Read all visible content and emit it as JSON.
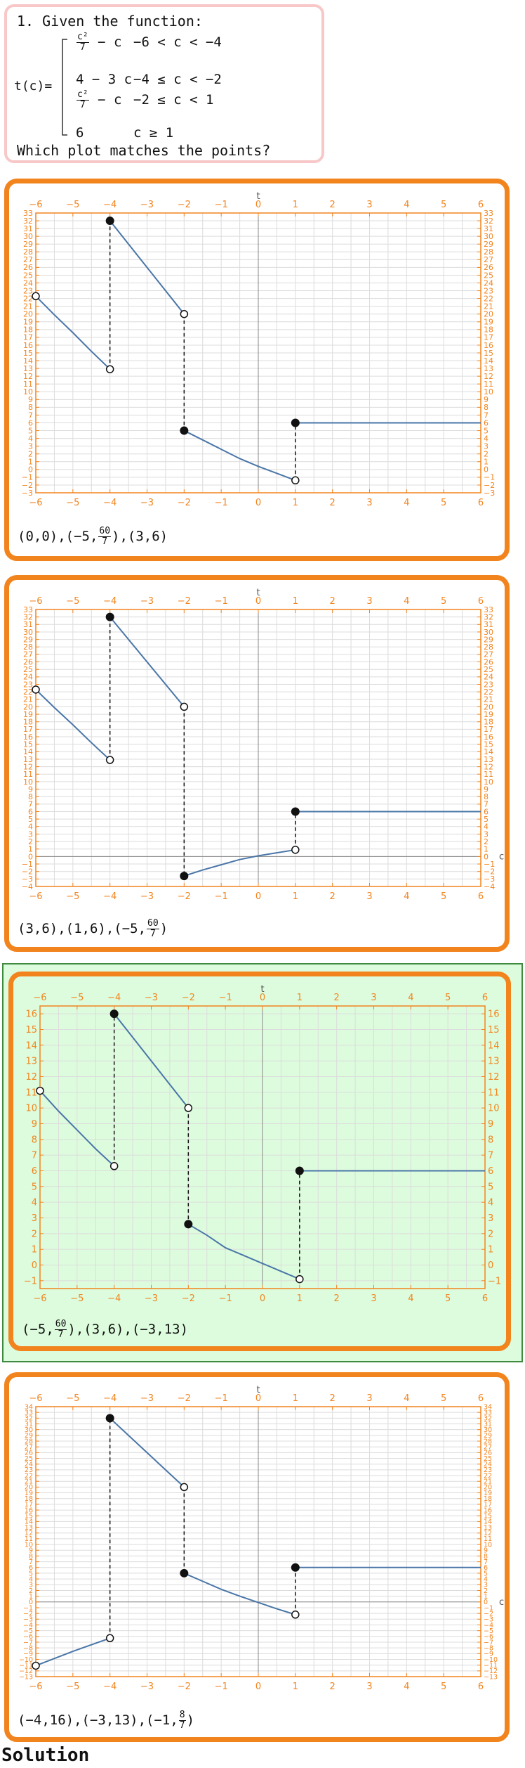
{
  "question": {
    "line1": "1. Given the function:",
    "func_name": "t(c)=",
    "cases": [
      {
        "expr_top": "c²",
        "expr_bot": "7",
        "expr_tail": "− c",
        "cond": "−6 < c < −4",
        "frac": true
      },
      {
        "expr": "4 − 3 c",
        "cond": "−4 ≤ c < −2",
        "frac": false
      },
      {
        "expr_top": "c²",
        "expr_bot": "7",
        "expr_tail": "− c",
        "cond": "−2 ≤ c < 1",
        "frac": true
      },
      {
        "expr": "6",
        "cond": "c ≥ 1",
        "frac": false
      }
    ],
    "prompt": "Which plot matches the points?"
  },
  "options": [
    {
      "points_parts": [
        "(0,0),(−5,",
        "60",
        "7",
        "),(3,6)"
      ],
      "chart_data": {
        "type": "line",
        "xlabel": "t",
        "ylabel": "",
        "xlim": [
          -6,
          6
        ],
        "ylim": [
          -3,
          33
        ],
        "xticks": [
          -6,
          -5,
          -4,
          -3,
          -2,
          -1,
          0,
          1,
          2,
          3,
          4,
          5,
          6
        ],
        "yticks": [
          -3,
          -2,
          -1,
          0,
          1,
          2,
          3,
          4,
          5,
          6,
          7,
          8,
          9,
          10,
          11,
          12,
          13,
          14,
          15,
          16,
          17,
          18,
          19,
          20,
          21,
          22,
          23,
          24,
          25,
          26,
          27,
          28,
          29,
          30,
          31,
          32,
          33
        ],
        "pieces": [
          {
            "x": [
              -6,
              -5.5,
              -5,
              -4.5,
              -4
            ],
            "y": [
              22.3,
              19.9,
              17.6,
              15.2,
              12.9
            ]
          },
          {
            "x": [
              -4,
              -2
            ],
            "y": [
              32,
              20
            ]
          },
          {
            "x": [
              -2,
              -1.5,
              -1,
              -0.5,
              0,
              0.5,
              1
            ],
            "y": [
              5,
              3.8,
              2.6,
              1.4,
              0.4,
              -0.5,
              -1.4
            ]
          },
          {
            "x": [
              1,
              6
            ],
            "y": [
              6,
              6
            ]
          }
        ],
        "dashed": [
          {
            "x": -4,
            "y1": 12.9,
            "y2": 32
          },
          {
            "x": -2,
            "y1": 20,
            "y2": 5
          },
          {
            "x": 1,
            "y1": -1.4,
            "y2": 6
          }
        ],
        "open_points": [
          [
            -6,
            22.3
          ],
          [
            -4,
            12.9
          ],
          [
            -2,
            20
          ],
          [
            1,
            -1.4
          ]
        ],
        "closed_points": [
          [
            -4,
            32
          ],
          [
            -2,
            5
          ],
          [
            1,
            6
          ]
        ],
        "show_c_label": false
      }
    },
    {
      "points_parts": [
        "(3,6),(1,6),(−5,",
        "60",
        "7",
        ")"
      ],
      "chart_data": {
        "type": "line",
        "xlabel": "t",
        "ylabel": "c",
        "xlim": [
          -6,
          6
        ],
        "ylim": [
          -4,
          33
        ],
        "xticks": [
          -6,
          -5,
          -4,
          -3,
          -2,
          -1,
          0,
          1,
          2,
          3,
          4,
          5,
          6
        ],
        "yticks": [
          -4,
          -3,
          -2,
          -1,
          0,
          1,
          2,
          3,
          4,
          5,
          6,
          7,
          8,
          9,
          10,
          11,
          12,
          13,
          14,
          15,
          16,
          17,
          18,
          19,
          20,
          21,
          22,
          23,
          24,
          25,
          26,
          27,
          28,
          29,
          30,
          31,
          32,
          33
        ],
        "pieces": [
          {
            "x": [
              -6,
              -5.5,
              -5,
              -4.5,
              -4
            ],
            "y": [
              22.3,
              19.9,
              17.6,
              15.2,
              12.9
            ]
          },
          {
            "x": [
              -4,
              -2
            ],
            "y": [
              32,
              20
            ]
          },
          {
            "x": [
              -2,
              -1.5,
              -1,
              -0.5,
              0,
              0.5,
              1
            ],
            "y": [
              -2.6,
              -1.8,
              -1.1,
              -0.4,
              0.1,
              0.5,
              0.9
            ]
          },
          {
            "x": [
              1,
              6
            ],
            "y": [
              6,
              6
            ]
          }
        ],
        "dashed": [
          {
            "x": -4,
            "y1": 12.9,
            "y2": 32
          },
          {
            "x": -2,
            "y1": 20,
            "y2": -2.6
          },
          {
            "x": 1,
            "y1": 0.9,
            "y2": 6
          }
        ],
        "open_points": [
          [
            -6,
            22.3
          ],
          [
            -4,
            12.9
          ],
          [
            -2,
            20
          ],
          [
            1,
            0.9
          ]
        ],
        "closed_points": [
          [
            -4,
            32
          ],
          [
            -2,
            -2.6
          ],
          [
            1,
            6
          ]
        ],
        "show_c_label": true
      }
    },
    {
      "points_parts": [
        "(−5,",
        "60",
        "7",
        "),(3,6),(−3,13)"
      ],
      "chart_data": {
        "type": "line",
        "xlabel": "t",
        "ylabel": "",
        "xlim": [
          -6,
          6
        ],
        "ylim": [
          -1.5,
          16.5
        ],
        "xticks": [
          -6,
          -5,
          -4,
          -3,
          -2,
          -1,
          0,
          1,
          2,
          3,
          4,
          5,
          6
        ],
        "yticks": [
          -1,
          0,
          1,
          2,
          3,
          4,
          5,
          6,
          7,
          8,
          9,
          10,
          11,
          12,
          13,
          14,
          15,
          16
        ],
        "pieces": [
          {
            "x": [
              -6,
              -5.5,
              -5,
              -4.5,
              -4
            ],
            "y": [
              11.1,
              9.8,
              8.6,
              7.4,
              6.3
            ]
          },
          {
            "x": [
              -4,
              -2
            ],
            "y": [
              16,
              10
            ]
          },
          {
            "x": [
              -2,
              -1.5,
              -1,
              -0.5,
              0,
              0.5,
              1
            ],
            "y": [
              2.6,
              1.9,
              1.1,
              0.6,
              0.1,
              -0.4,
              -0.9
            ]
          },
          {
            "x": [
              1,
              6
            ],
            "y": [
              6,
              6
            ]
          }
        ],
        "dashed": [
          {
            "x": -4,
            "y1": 6.3,
            "y2": 16
          },
          {
            "x": -2,
            "y1": 10,
            "y2": 2.6
          },
          {
            "x": 1,
            "y1": -0.9,
            "y2": 6
          }
        ],
        "open_points": [
          [
            -6,
            11.1
          ],
          [
            -4,
            6.3
          ],
          [
            -2,
            10
          ],
          [
            1,
            -0.9
          ]
        ],
        "closed_points": [
          [
            -4,
            16
          ],
          [
            -2,
            2.6
          ],
          [
            1,
            6
          ]
        ],
        "show_c_label": false
      }
    },
    {
      "points_parts": [
        "(−4,16),(−3,13),(−1,",
        "8",
        "7",
        ")"
      ],
      "chart_data": {
        "type": "line",
        "xlabel": "t",
        "ylabel": "c",
        "xlim": [
          -6,
          6
        ],
        "ylim": [
          -13,
          34
        ],
        "xticks": [
          -6,
          -5,
          -4,
          -3,
          -2,
          -1,
          0,
          1,
          2,
          3,
          4,
          5,
          6
        ],
        "yticks": [
          -13,
          -12,
          -11,
          -10,
          -9,
          -8,
          -7,
          -6,
          -5,
          -4,
          -3,
          -2,
          -1,
          0,
          1,
          2,
          3,
          4,
          5,
          6,
          7,
          8,
          9,
          10,
          11,
          12,
          13,
          14,
          15,
          16,
          17,
          18,
          19,
          20,
          21,
          22,
          23,
          24,
          25,
          26,
          27,
          28,
          29,
          30,
          31,
          32,
          33,
          34
        ],
        "pieces": [
          {
            "x": [
              -6,
              -5,
              -4
            ],
            "y": [
              -11.1,
              -8.6,
              -6.3
            ]
          },
          {
            "x": [
              -4,
              -2
            ],
            "y": [
              32,
              20
            ]
          },
          {
            "x": [
              -2,
              -1.5,
              -1,
              -0.5,
              0,
              0.5,
              1
            ],
            "y": [
              5,
              3.6,
              2.2,
              1,
              -0.1,
              -1.2,
              -2.2
            ]
          },
          {
            "x": [
              1,
              6
            ],
            "y": [
              6,
              6
            ]
          }
        ],
        "dashed": [
          {
            "x": -4,
            "y1": -6.3,
            "y2": 32
          },
          {
            "x": -2,
            "y1": 20,
            "y2": 5
          },
          {
            "x": 1,
            "y1": -2.2,
            "y2": 6
          }
        ],
        "open_points": [
          [
            -6,
            -11.1
          ],
          [
            -4,
            -6.3
          ],
          [
            -2,
            20
          ],
          [
            1,
            -2.2
          ]
        ],
        "closed_points": [
          [
            -4,
            32
          ],
          [
            -2,
            5
          ],
          [
            1,
            6
          ]
        ],
        "show_c_label": true
      }
    }
  ],
  "solution_label": "Solution",
  "colors": {
    "frame": "#f2841e",
    "axis": "#f2841e",
    "line": "#4a76a8",
    "selected_bg": "#ddfcdd"
  }
}
